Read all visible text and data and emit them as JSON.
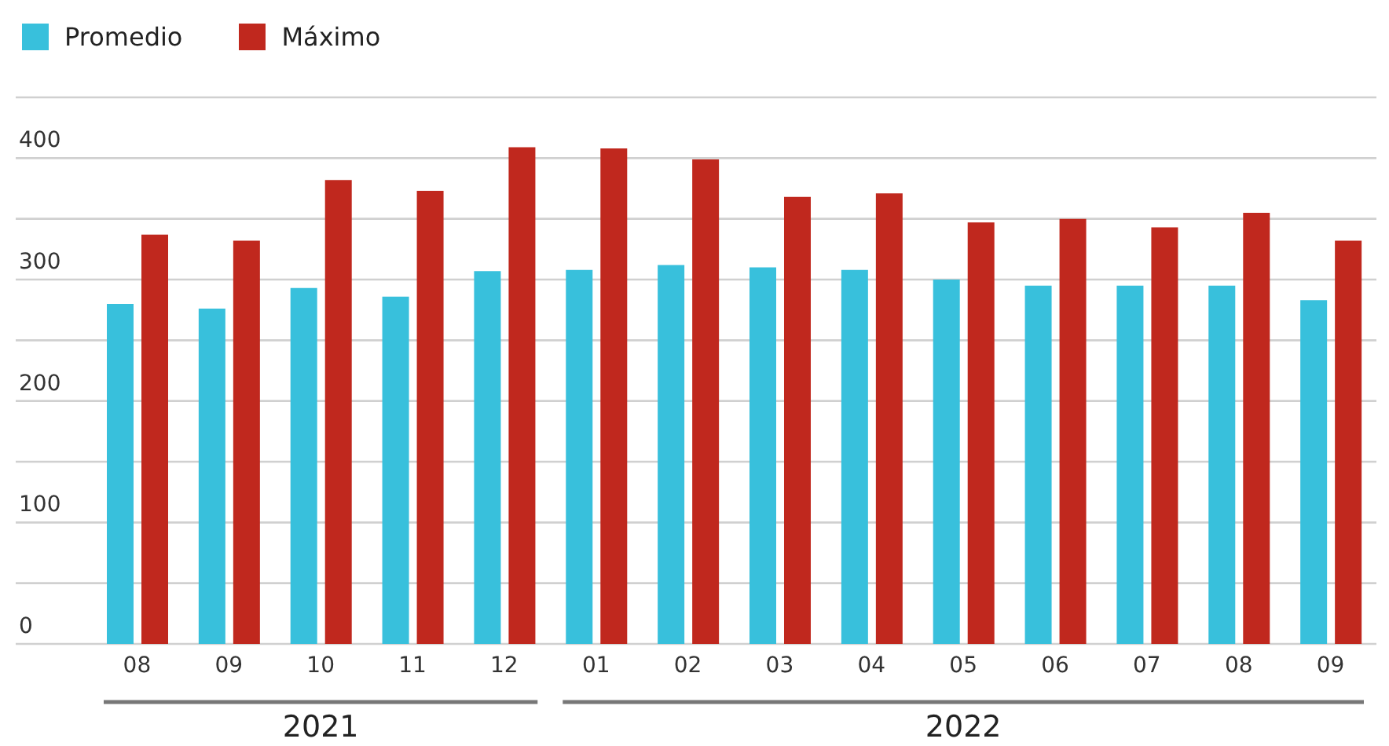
{
  "chart_data": {
    "type": "bar",
    "categories": [
      "08",
      "09",
      "10",
      "11",
      "12",
      "01",
      "02",
      "03",
      "04",
      "05",
      "06",
      "07",
      "08",
      "09"
    ],
    "series": [
      {
        "name": "Promedio",
        "color": "#38c0dc",
        "values": [
          280,
          276,
          293,
          286,
          307,
          308,
          312,
          310,
          308,
          300,
          295,
          295,
          295,
          283
        ]
      },
      {
        "name": "Máximo",
        "color": "#c0281e",
        "values": [
          337,
          332,
          382,
          373,
          409,
          408,
          399,
          368,
          371,
          347,
          350,
          343,
          355,
          332
        ]
      }
    ],
    "ylim": [
      0,
      450
    ],
    "yticks": [
      0,
      {
        "value": 50,
        "label": null
      },
      100,
      {
        "value": 150,
        "label": null
      },
      200,
      {
        "value": 250,
        "label": null
      },
      300,
      {
        "value": 350,
        "label": null
      },
      400,
      {
        "value": 450,
        "label": null
      }
    ],
    "grid": "y",
    "legend": "top left",
    "annotations": [
      "2021",
      "2022"
    ]
  }
}
